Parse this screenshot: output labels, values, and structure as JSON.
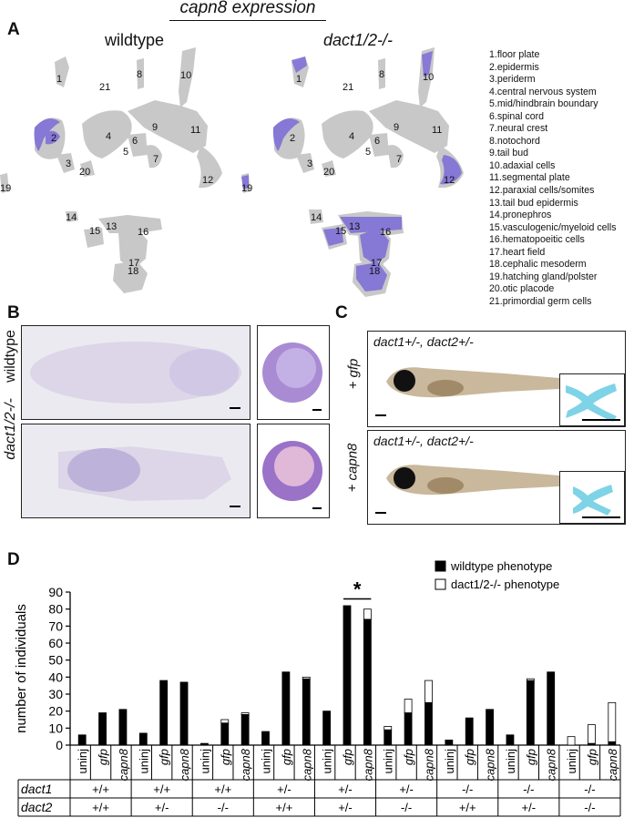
{
  "figure_title": "capn8 expression",
  "panels": {
    "A": "A",
    "B": "B",
    "C": "C",
    "D": "D"
  },
  "panel_a": {
    "wildtype_title": "wildtype",
    "mutant_title": "dact1/2-/-",
    "cluster_numbers": [
      "1",
      "2",
      "3",
      "4",
      "5",
      "6",
      "7",
      "8",
      "9",
      "10",
      "11",
      "12",
      "13",
      "14",
      "15",
      "16",
      "17",
      "18",
      "19",
      "20",
      "21"
    ],
    "cluster_legend": [
      "1.floor plate",
      "2.epidermis",
      "3.periderm",
      "4.central nervous system",
      "5.mid/hindbrain boundary",
      "6.spinal cord",
      "7.neural crest",
      "8.notochord",
      "9.tail bud",
      "10.adaxial cells",
      "11.segmental plate",
      "12.paraxial cells/somites",
      "13.tail bud epidermis",
      "14.pronephros",
      "15.vasculogenic/myeloid cells",
      "16.hematopoeitic cells",
      "17.heart field",
      "18.cephalic mesoderm",
      "19.hatching gland/polster",
      "20.otic placode",
      "21.primordial germ cells"
    ]
  },
  "panel_b": {
    "row_labels": [
      "wildtype",
      "dact1/2-/-"
    ]
  },
  "panel_c": {
    "genotype_top": "dact1+/-, dact2+/-",
    "genotype_bottom": "dact1+/-, dact2+/-",
    "injection_top": "+ gfp",
    "injection_bottom": "+ capn8"
  },
  "chart_data": {
    "type": "bar",
    "stacked": true,
    "ylabel": "number of individuals",
    "ylim": [
      0,
      90
    ],
    "yticks": [
      0,
      10,
      20,
      30,
      40,
      50,
      60,
      70,
      80,
      90
    ],
    "categories": [
      "uninj",
      "gfp",
      "capn8",
      "uninj",
      "gfp",
      "capn8",
      "uninj",
      "gfp",
      "capn8",
      "uninj",
      "gfp",
      "capn8",
      "uninj",
      "gfp",
      "capn8",
      "uninj",
      "gfp",
      "capn8",
      "uninj",
      "gfp",
      "capn8",
      "uninj",
      "gfp",
      "capn8",
      "uninj",
      "gfp",
      "capn8"
    ],
    "series": [
      {
        "name": "wildtype phenotype",
        "color": "#000000",
        "values": [
          6,
          19,
          21,
          7,
          38,
          37,
          1,
          13,
          18,
          8,
          43,
          39,
          20,
          82,
          74,
          9,
          19,
          25,
          3,
          16,
          21,
          6,
          38,
          43,
          0,
          1,
          2
        ]
      },
      {
        "name": "dact1/2-/- phenotype",
        "color": "#ffffff",
        "values": [
          0,
          0,
          0,
          0,
          0,
          0,
          0,
          2,
          1,
          0,
          0,
          1,
          0,
          0,
          6,
          2,
          8,
          13,
          0,
          0,
          0,
          0,
          1,
          0,
          5,
          11,
          23
        ]
      }
    ],
    "genotype_groups": [
      {
        "dact1": "+/+",
        "dact2": "+/+"
      },
      {
        "dact1": "+/+",
        "dact2": "+/-"
      },
      {
        "dact1": "+/+",
        "dact2": "-/-"
      },
      {
        "dact1": "+/-",
        "dact2": "+/+"
      },
      {
        "dact1": "+/-",
        "dact2": "+/-"
      },
      {
        "dact1": "+/-",
        "dact2": "-/-"
      },
      {
        "dact1": "-/-",
        "dact2": "+/+"
      },
      {
        "dact1": "-/-",
        "dact2": "+/-"
      },
      {
        "dact1": "-/-",
        "dact2": "-/-"
      }
    ],
    "row_labels": [
      "dact1",
      "dact2"
    ],
    "significance_mark": "*",
    "legend_position": "top-right"
  }
}
